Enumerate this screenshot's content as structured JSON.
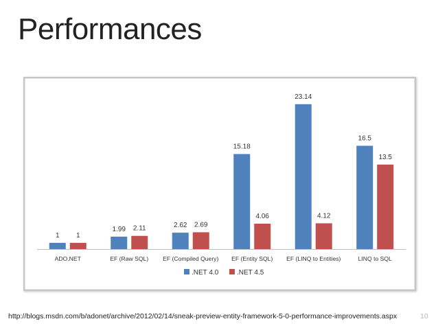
{
  "slide": {
    "title": "Performances",
    "source_url": "http://blogs.msdn.com/b/adonet/archive/2012/02/14/sneak-preview-entity-framework-5-0-performance-improvements.aspx",
    "page_number": "10"
  },
  "chart_data": {
    "type": "bar",
    "categories": [
      "ADO.NET",
      "EF (Raw SQL)",
      "EF (Compiled Query)",
      "EF (Entity SQL)",
      "EF (LINQ to Entities)",
      "LINQ to SQL"
    ],
    "series": [
      {
        "name": ".NET 4.0",
        "values": [
          1,
          1.99,
          2.62,
          15.18,
          23.14,
          16.5
        ],
        "labels": [
          "1",
          "1.99",
          "2.62",
          "15.18",
          "23.14",
          "16.5"
        ],
        "color": "#4f81bd"
      },
      {
        "name": ".NET 4.5",
        "values": [
          1,
          2.11,
          2.69,
          4.06,
          4.12,
          13.5
        ],
        "labels": [
          "1",
          "2.11",
          "2.69",
          "4.06",
          "4.12",
          "13.5"
        ],
        "color": "#c0504d"
      }
    ],
    "title": "",
    "xlabel": "",
    "ylabel": "",
    "ylim": [
      0,
      24
    ],
    "grid": false,
    "legend": "bottom"
  }
}
